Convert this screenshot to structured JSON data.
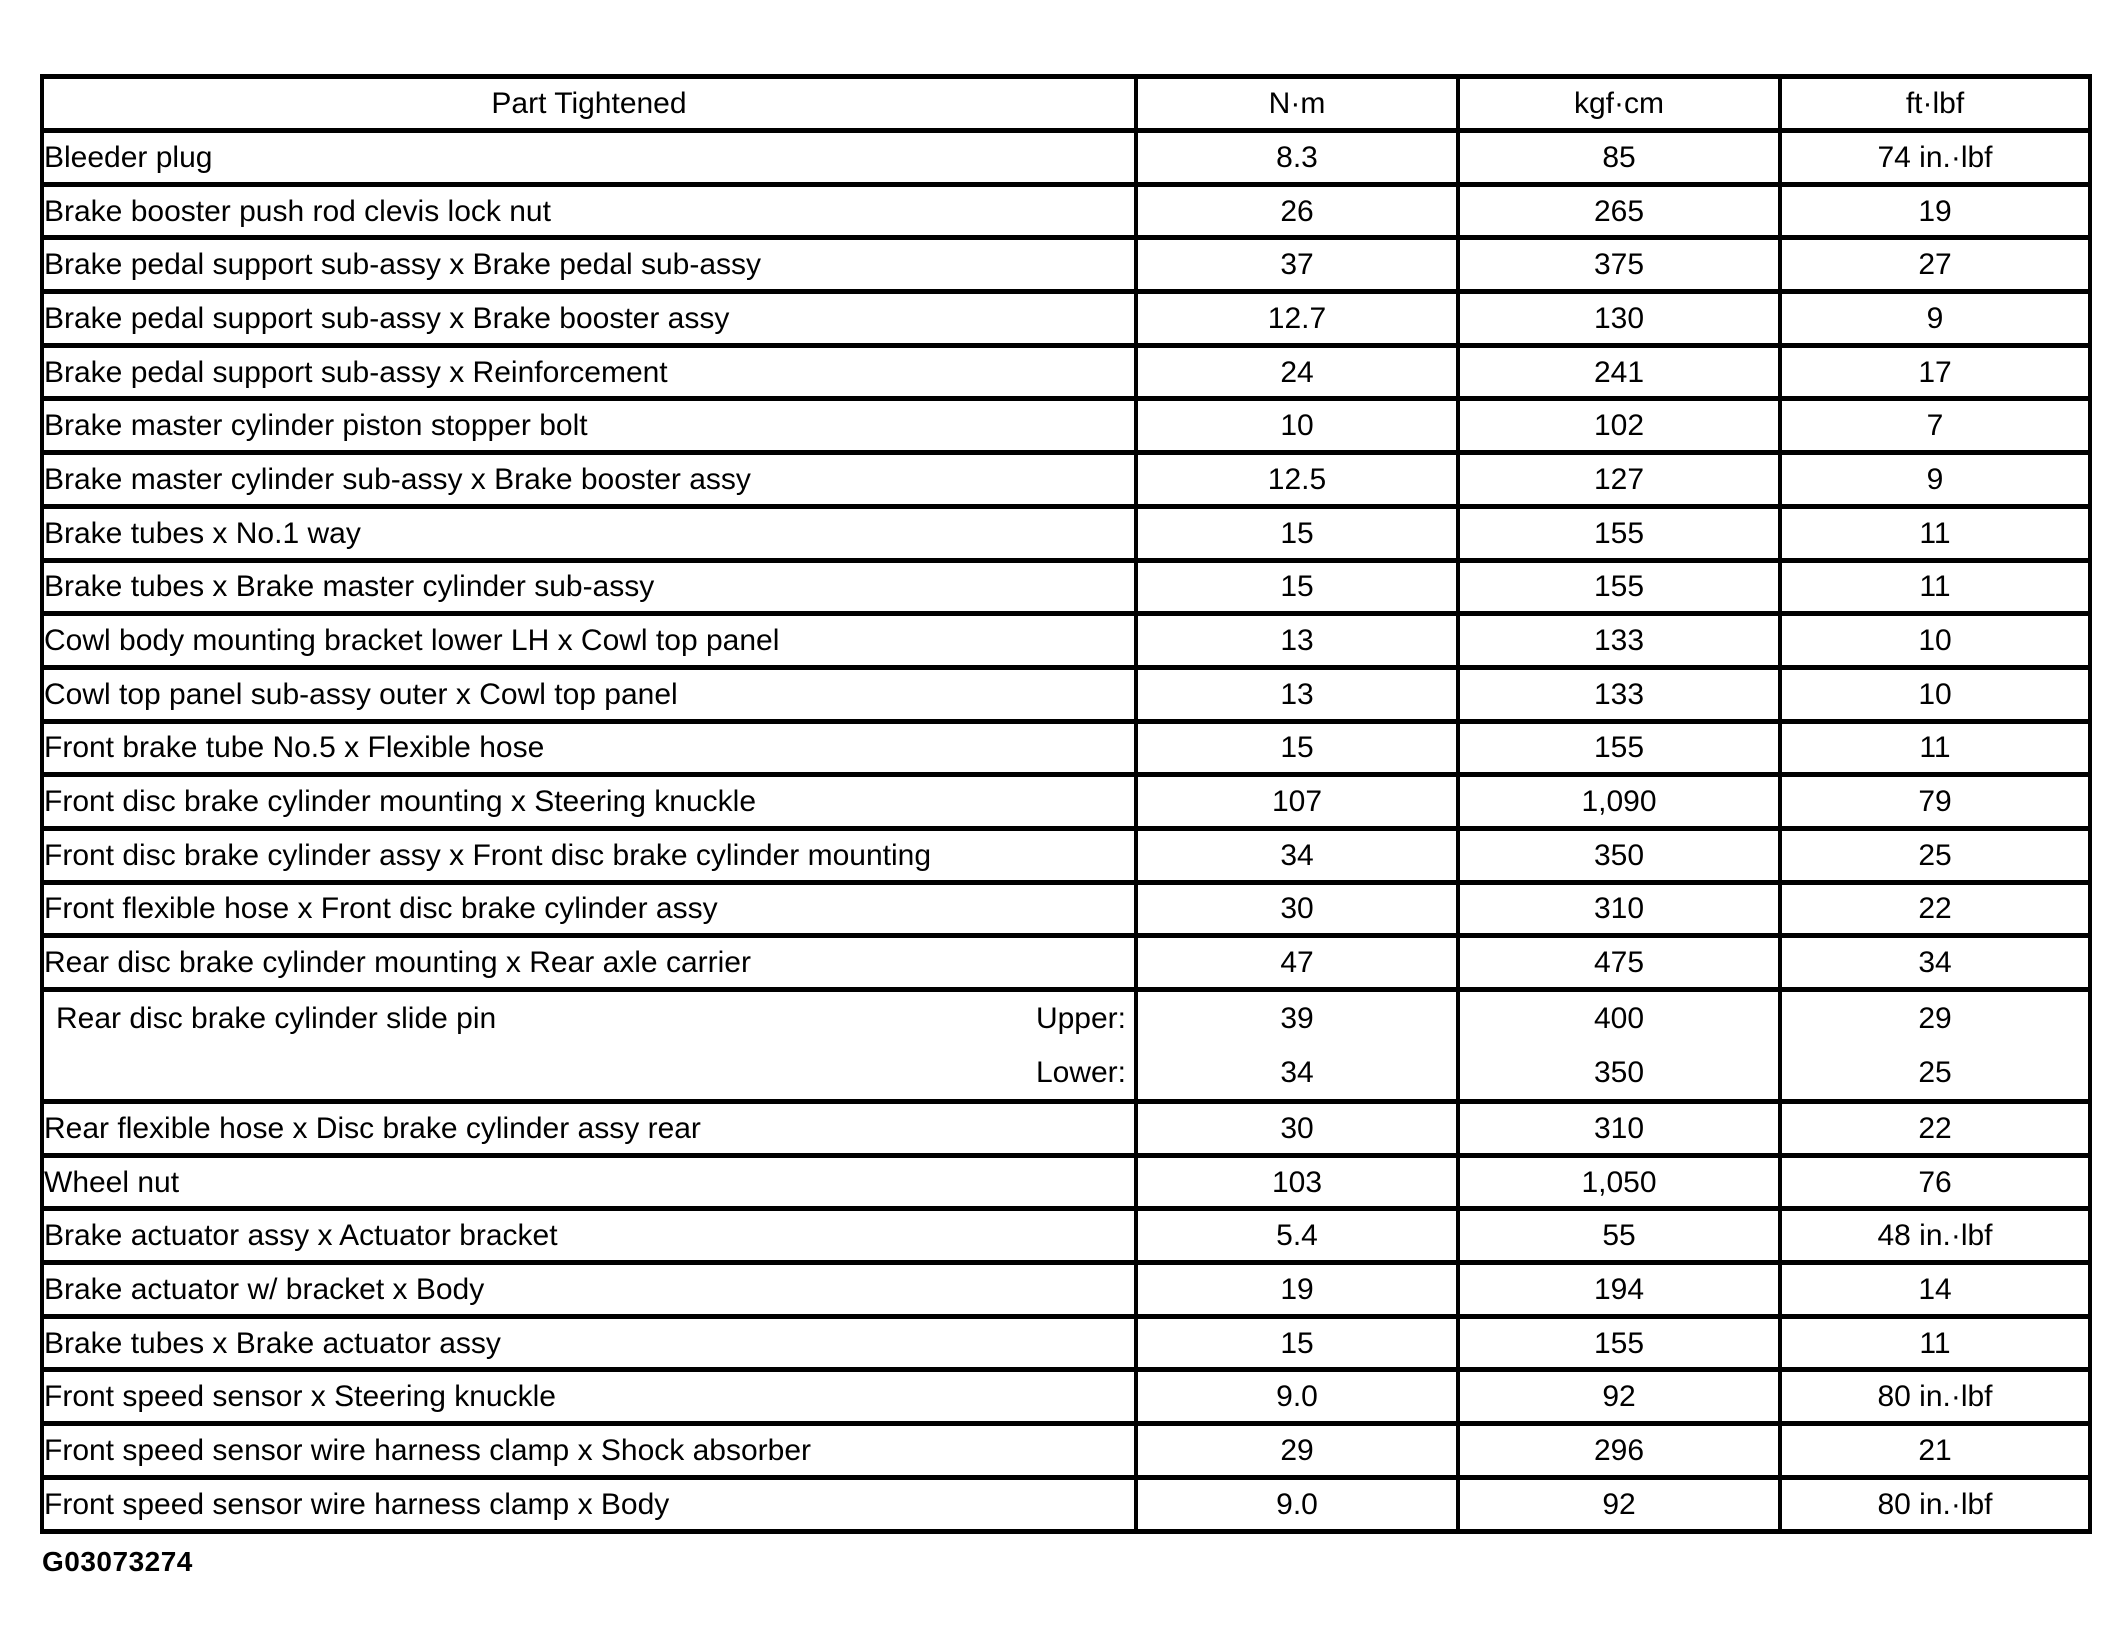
{
  "page": {
    "background": "#ffffff",
    "text_color": "#000000",
    "footer_code": "G03073274"
  },
  "table": {
    "columns": [
      "Part Tightened",
      "N·m",
      "kgf·cm",
      "ft·lbf"
    ],
    "rows": [
      {
        "part": "Bleeder plug",
        "nm": "8.3",
        "kgfcm": "85",
        "ftlbf": "74 in.·lbf"
      },
      {
        "part": "Brake booster push rod clevis lock nut",
        "nm": "26",
        "kgfcm": "265",
        "ftlbf": "19"
      },
      {
        "part": "Brake pedal support sub-assy x Brake pedal sub-assy",
        "nm": "37",
        "kgfcm": "375",
        "ftlbf": "27"
      },
      {
        "part": "Brake pedal support sub-assy x Brake booster assy",
        "nm": "12.7",
        "kgfcm": "130",
        "ftlbf": "9"
      },
      {
        "part": "Brake pedal support sub-assy x Reinforcement",
        "nm": "24",
        "kgfcm": "241",
        "ftlbf": "17"
      },
      {
        "part": "Brake master cylinder piston stopper bolt",
        "nm": "10",
        "kgfcm": "102",
        "ftlbf": "7"
      },
      {
        "part": "Brake master cylinder sub-assy x Brake booster assy",
        "nm": "12.5",
        "kgfcm": "127",
        "ftlbf": "9"
      },
      {
        "part": "Brake tubes x No.1 way",
        "nm": "15",
        "kgfcm": "155",
        "ftlbf": "11"
      },
      {
        "part": "Brake tubes x Brake master cylinder sub-assy",
        "nm": "15",
        "kgfcm": "155",
        "ftlbf": "11"
      },
      {
        "part": "Cowl body mounting bracket lower LH x Cowl top panel",
        "nm": "13",
        "kgfcm": "133",
        "ftlbf": "10"
      },
      {
        "part": "Cowl top panel sub-assy outer x Cowl top panel",
        "nm": "13",
        "kgfcm": "133",
        "ftlbf": "10"
      },
      {
        "part": "Front brake tube No.5 x Flexible hose",
        "nm": "15",
        "kgfcm": "155",
        "ftlbf": "11"
      },
      {
        "part": "Front disc brake cylinder mounting x Steering knuckle",
        "nm": "107",
        "kgfcm": "1,090",
        "ftlbf": "79"
      },
      {
        "part": "Front disc brake cylinder assy x Front disc brake cylinder mounting",
        "nm": "34",
        "kgfcm": "350",
        "ftlbf": "25"
      },
      {
        "part": "Front flexible hose x Front disc brake cylinder assy",
        "nm": "30",
        "kgfcm": "310",
        "ftlbf": "22"
      },
      {
        "part": "Rear disc brake cylinder mounting x Rear axle carrier",
        "nm": "47",
        "kgfcm": "475",
        "ftlbf": "34"
      },
      {
        "part": "Rear disc brake cylinder slide pin",
        "variants": [
          {
            "label": "Upper:",
            "nm": "39",
            "kgfcm": "400",
            "ftlbf": "29"
          },
          {
            "label": "Lower:",
            "nm": "34",
            "kgfcm": "350",
            "ftlbf": "25"
          }
        ]
      },
      {
        "part": "Rear flexible hose x Disc brake cylinder assy rear",
        "nm": "30",
        "kgfcm": "310",
        "ftlbf": "22"
      },
      {
        "part": "Wheel nut",
        "nm": "103",
        "kgfcm": "1,050",
        "ftlbf": "76"
      },
      {
        "part": "Brake actuator assy x Actuator bracket",
        "nm": "5.4",
        "kgfcm": "55",
        "ftlbf": "48 in.·lbf"
      },
      {
        "part": "Brake actuator w/ bracket x Body",
        "nm": "19",
        "kgfcm": "194",
        "ftlbf": "14"
      },
      {
        "part": "Brake tubes x Brake actuator assy",
        "nm": "15",
        "kgfcm": "155",
        "ftlbf": "11"
      },
      {
        "part": "Front speed sensor x Steering knuckle",
        "nm": "9.0",
        "kgfcm": "92",
        "ftlbf": "80 in.·lbf"
      },
      {
        "part": "Front speed sensor wire harness clamp x Shock absorber",
        "nm": "29",
        "kgfcm": "296",
        "ftlbf": "21"
      },
      {
        "part": "Front speed sensor wire harness clamp x Body",
        "nm": "9.0",
        "kgfcm": "92",
        "ftlbf": "80 in.·lbf"
      }
    ]
  }
}
